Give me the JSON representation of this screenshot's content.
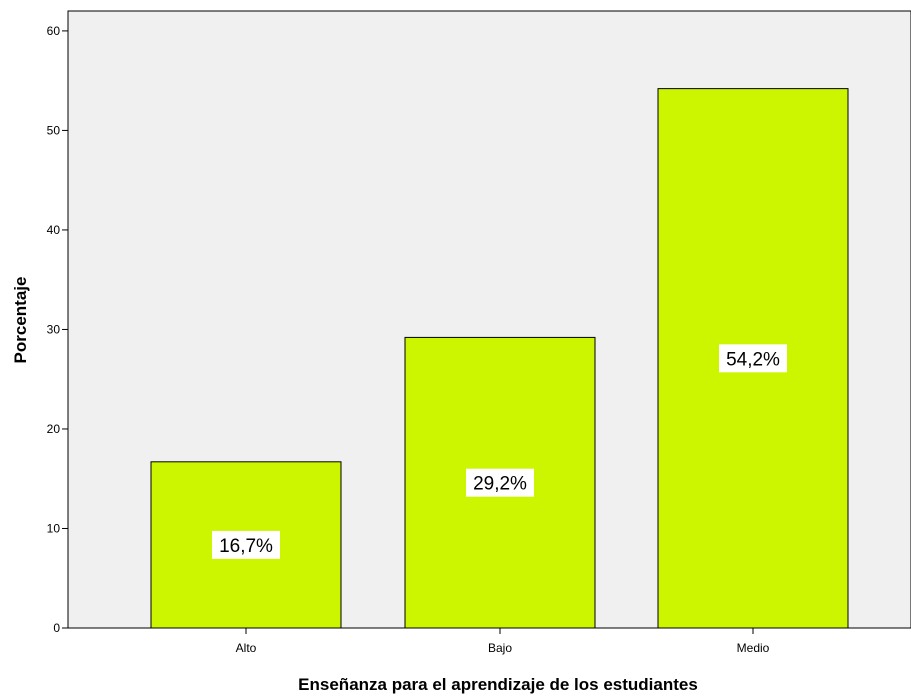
{
  "chart_data": {
    "type": "bar",
    "categories": [
      "Alto",
      "Bajo",
      "Medio"
    ],
    "values": [
      16.7,
      29.2,
      54.2
    ],
    "data_labels": [
      "16,7%",
      "29,2%",
      "54,2%"
    ],
    "xlabel": "Enseñanza para el aprendizaje de los estudiantes",
    "ylabel": "Porcentaje",
    "ylim": [
      0,
      62
    ],
    "yticks": [
      0,
      10,
      20,
      30,
      40,
      50,
      60
    ],
    "grid": false,
    "legend": "none"
  },
  "colors": {
    "bar_fill": "#ccf500",
    "bar_stroke": "#000000",
    "plot_background": "#f0f0f0",
    "label_box": "#ffffff"
  }
}
